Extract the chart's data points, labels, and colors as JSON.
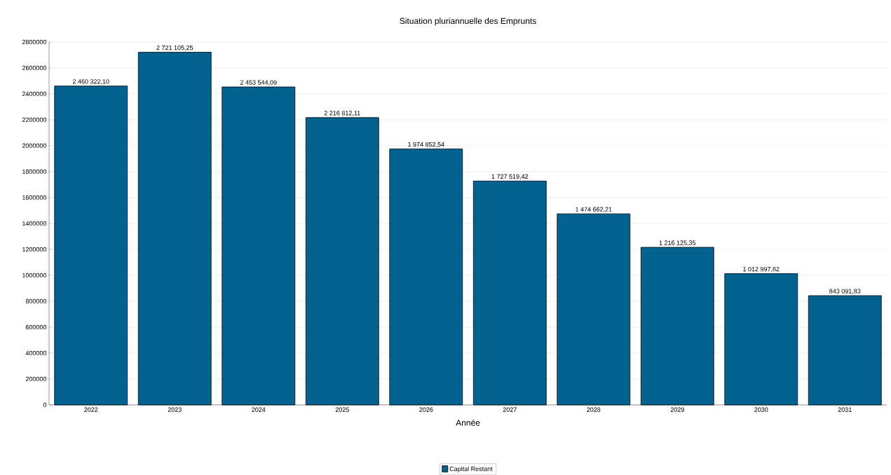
{
  "chart_data": {
    "type": "bar",
    "title": "Situation pluriannuelle des Emprunts",
    "xlabel": "Année",
    "categories": [
      "2022",
      "2023",
      "2024",
      "2025",
      "2026",
      "2027",
      "2028",
      "2029",
      "2030",
      "2031"
    ],
    "series": [
      {
        "name": "Capital Restant",
        "color": "#03628f",
        "values": [
          2460322.1,
          2721105.25,
          2453544.09,
          2216812.11,
          1974852.54,
          1727519.42,
          1474662.21,
          1216125.35,
          1012997.82,
          843091.83
        ],
        "value_labels": [
          "2 460 322,10",
          "2 721 105,25",
          "2 453 544,09",
          "2 216 812,11",
          "1 974 852,54",
          "1 727 519,42",
          "1 474 662,21",
          "1 216 125,35",
          "1 012 997,82",
          "843 091,83"
        ]
      }
    ],
    "ylim": [
      0,
      2800000
    ],
    "yticks": [
      0,
      200000,
      400000,
      600000,
      800000,
      1000000,
      1200000,
      1400000,
      1600000,
      1800000,
      2000000,
      2200000,
      2400000,
      2600000,
      2800000
    ],
    "grid": "y",
    "legend": "bottom"
  }
}
